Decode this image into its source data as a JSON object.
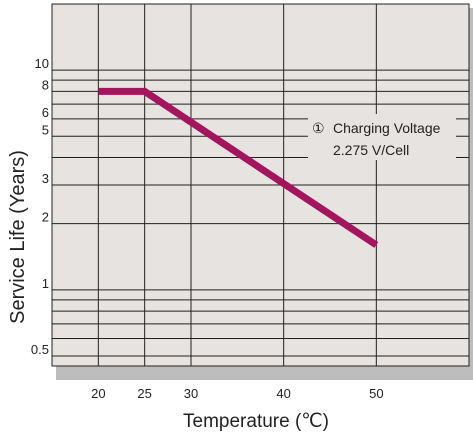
{
  "chart_data": {
    "type": "line",
    "title": "",
    "xlabel": "Temperature (℃)",
    "ylabel": "Service Life (Years)",
    "x_ticks": [
      20,
      25,
      30,
      40,
      50
    ],
    "y_ticks": [
      0.5,
      1,
      2,
      3,
      5,
      6,
      8,
      10
    ],
    "xlim": [
      15,
      60
    ],
    "ylim": [
      0.45,
      20
    ],
    "y_scale": "log",
    "grid": true,
    "colors": {
      "plot_background": "#e6e3e0",
      "grid": "#222222",
      "series": "#a3155e",
      "shadow": "#bdbdbd"
    },
    "series": [
      {
        "name": "",
        "x": [
          20,
          25,
          50
        ],
        "y": [
          8,
          8,
          1.6
        ]
      }
    ],
    "annotation": {
      "marker": "①",
      "line1": "Charging Voltage",
      "line2": "2.275 V/Cell"
    }
  }
}
